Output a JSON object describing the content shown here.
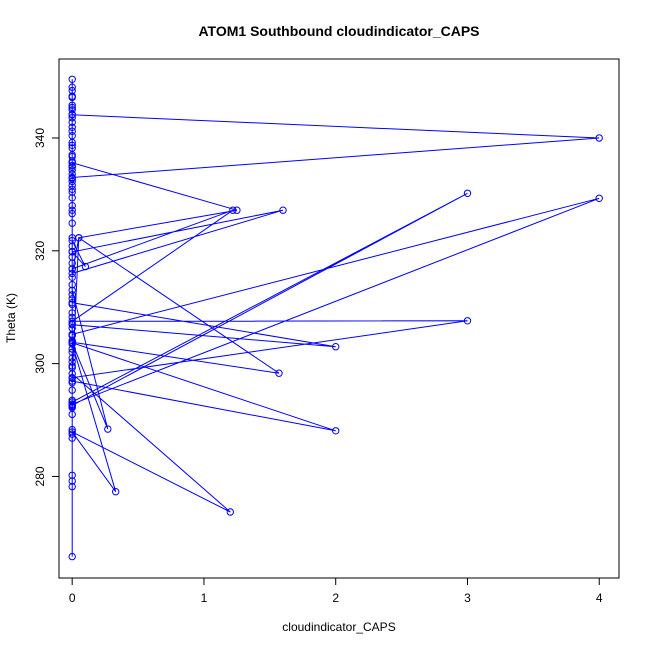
{
  "chart_data": {
    "type": "line",
    "title": "ATOM1 Southbound cloudindicator_CAPS",
    "xlabel": "cloudindicator_CAPS",
    "ylabel": "Theta (K)",
    "xlim": [
      -0.1,
      4.15
    ],
    "ylim": [
      262,
      354
    ],
    "xticks": [
      0,
      1,
      2,
      3,
      4
    ],
    "yticks": [
      280,
      300,
      320,
      340
    ],
    "marker": "open-circle",
    "color": "#0000ff",
    "series": [
      {
        "x": [
          0,
          0,
          0,
          0,
          0,
          0,
          0,
          0,
          0,
          0,
          0,
          0,
          0,
          0,
          0,
          0,
          0,
          0,
          0,
          0,
          0,
          0,
          0,
          0,
          0,
          0,
          0,
          0,
          0,
          0,
          0,
          0,
          0,
          0,
          0,
          0,
          0,
          0,
          0,
          0,
          0,
          0,
          0,
          0,
          0,
          0,
          0,
          0,
          0,
          0,
          0,
          0,
          0,
          0,
          0,
          0,
          0,
          0,
          0,
          0,
          0,
          0,
          0,
          0,
          0,
          0,
          0,
          0,
          0,
          0,
          0,
          4,
          0,
          0,
          1.25,
          0.05,
          0,
          1.6,
          0,
          0.1,
          0,
          0,
          4,
          0,
          0,
          3,
          0,
          0,
          2,
          0,
          0,
          0,
          1.22,
          0,
          3,
          0,
          0.05,
          1.57,
          0,
          0,
          0.27,
          0,
          2,
          0,
          0,
          0.33,
          0,
          1.2,
          0,
          0,
          0
        ],
        "y": [
          265.8,
          278.2,
          279.2,
          280.2,
          286.8,
          287.5,
          288.3,
          291,
          292.2,
          292.8,
          293.5,
          295.3,
          296.6,
          297.4,
          299.6,
          300.3,
          301,
          302,
          302.6,
          304.1,
          305,
          306.3,
          307.1,
          308.2,
          309,
          310.5,
          311.5,
          312.2,
          314,
          315.3,
          316.8,
          317.8,
          318.9,
          319.9,
          320.8,
          322.3,
          324.9,
          326.6,
          328,
          330.4,
          331.6,
          332.3,
          333.6,
          334.3,
          335.1,
          335.9,
          337,
          338.2,
          339.2,
          340.4,
          341.2,
          342.8,
          344.2,
          345,
          345.8,
          347.2,
          348.4,
          350.4,
          349,
          347.4,
          345.4,
          343.6,
          341.9,
          338.7,
          336.7,
          334.8,
          332.8,
          330.9,
          329.4,
          327.2,
          344.1,
          340,
          333,
          335.6,
          327.2,
          322.3,
          316,
          327.2,
          319.8,
          317.2,
          321.8,
          305.2,
          329.3,
          292.8,
          293.2,
          330.2,
          292.6,
          306.9,
          303,
          310.8,
          305,
          316.8,
          327.2,
          307.5,
          307.6,
          297.5,
          322.3,
          298.3,
          303.8,
          313,
          288.4,
          303.7,
          288.1,
          296.9,
          303.5,
          277.3,
          287.9,
          273.7,
          298.2,
          299.3,
          292.4
        ]
      }
    ]
  }
}
